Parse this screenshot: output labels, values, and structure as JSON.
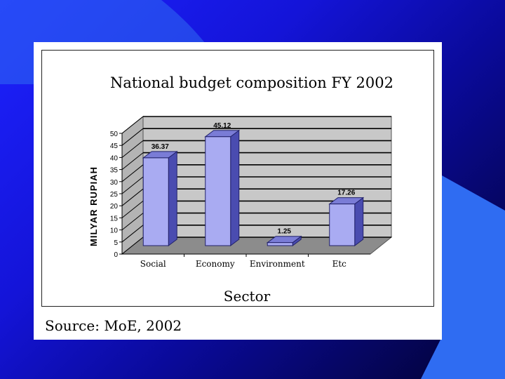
{
  "colors": {
    "bar_face": "#a9abf2",
    "bar_side": "#4a4cb0",
    "bar_top": "#7a7cd6",
    "wall": "#c8c8c8",
    "floor": "#8c8c8c",
    "slide_shape": "#2f6cf2"
  },
  "source": "Source: MoE, 2002",
  "chart_data": {
    "type": "bar",
    "title": "National budget composition FY 2002",
    "xlabel": "Sector",
    "ylabel": "MILYAR RUPIAH",
    "categories": [
      "Social",
      "Economy",
      "Environment",
      "Etc"
    ],
    "values": [
      36.37,
      45.12,
      1.25,
      17.26
    ],
    "data_labels": [
      "36.37",
      "45.12",
      "1.25",
      "17.26"
    ],
    "yticks": [
      "0",
      "5",
      "10",
      "15",
      "20",
      "25",
      "30",
      "35",
      "40",
      "45",
      "50"
    ],
    "ylim": [
      0,
      50
    ],
    "grid": true,
    "style": "3d"
  }
}
